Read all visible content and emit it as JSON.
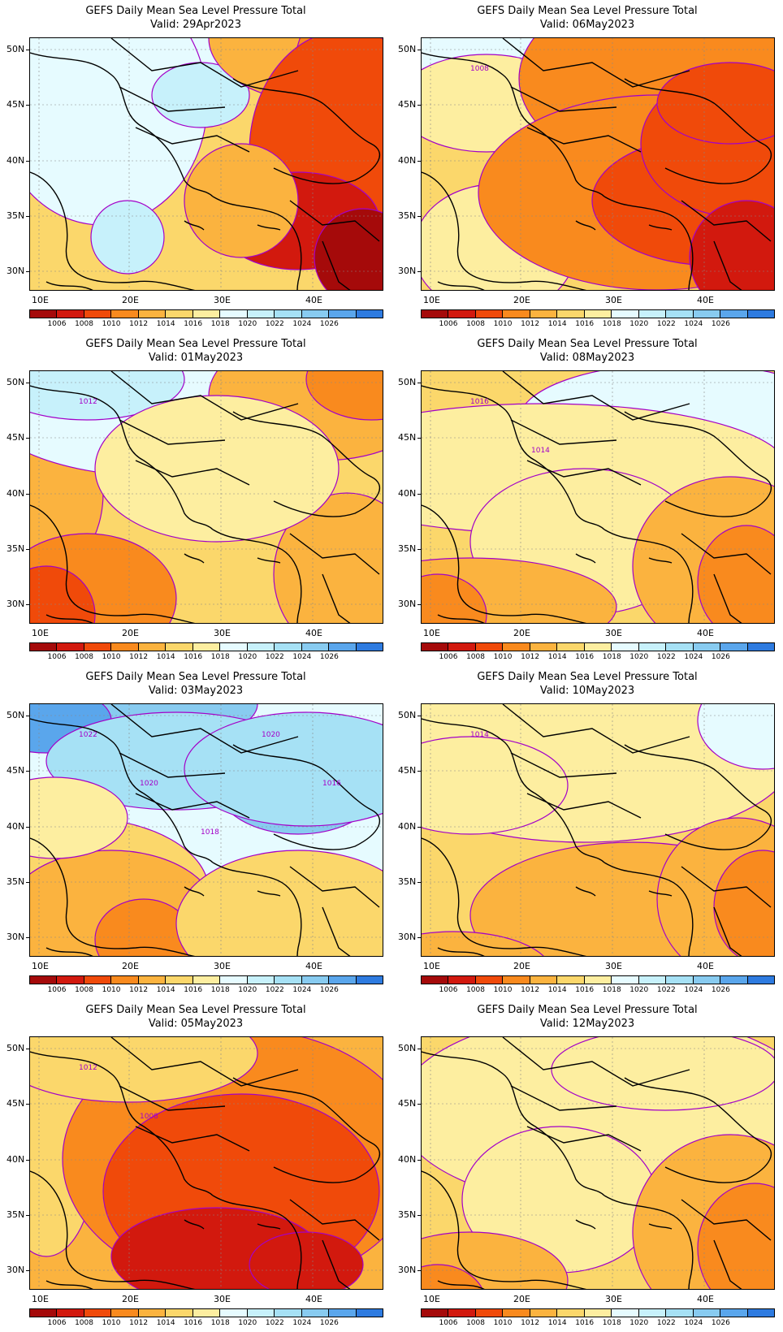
{
  "palette": [
    "#a50a0a",
    "#d2190e",
    "#f04a0a",
    "#f98a1e",
    "#fbb33f",
    "#fbd76b",
    "#fdeea0",
    "#e6fbff",
    "#c7f1fb",
    "#a6e1f5",
    "#88cbf0",
    "#5aa6ec",
    "#2e7be0"
  ],
  "contour_color": "#a300c8",
  "colorbar_labels": [
    "1006",
    "1008",
    "1010",
    "1012",
    "1014",
    "1016",
    "1018",
    "1020",
    "1022",
    "1024",
    "1026"
  ],
  "lat_labels": [
    "50N",
    "45N",
    "40N",
    "35N",
    "30N"
  ],
  "lon_labels": [
    "10E",
    "20E",
    "30E",
    "40E"
  ],
  "panels": [
    {
      "title": "GEFS Daily Mean Sea Level Pressure Total",
      "valid": "Valid: 29Apr2023",
      "bg": 5,
      "contour_labels": [],
      "fields": [
        [
          40,
          0,
          150,
          20,
          6
        ],
        [
          175,
          10,
          140,
          60,
          7
        ],
        [
          88,
          80,
          130,
          150,
          7
        ],
        [
          120,
          245,
          45,
          45,
          8
        ],
        [
          210,
          70,
          60,
          40,
          8
        ],
        [
          360,
          0,
          140,
          80,
          4
        ],
        [
          400,
          80,
          80,
          150,
          3
        ],
        [
          390,
          140,
          120,
          150,
          2
        ],
        [
          330,
          225,
          100,
          60,
          1
        ],
        [
          410,
          270,
          60,
          60,
          0
        ],
        [
          260,
          200,
          70,
          70,
          4
        ]
      ]
    },
    {
      "title": "GEFS Daily Mean Sea Level Pressure Total",
      "valid": "Valid: 06May2023",
      "bg": 5,
      "contour_labels": [
        {
          "text": "1008"
        }
      ],
      "fields": [
        [
          60,
          40,
          130,
          60,
          7
        ],
        [
          80,
          80,
          110,
          60,
          6
        ],
        [
          90,
          260,
          100,
          80,
          6
        ],
        [
          320,
          50,
          200,
          120,
          3
        ],
        [
          290,
          190,
          220,
          120,
          3
        ],
        [
          360,
          200,
          150,
          80,
          2
        ],
        [
          390,
          130,
          120,
          90,
          2
        ],
        [
          400,
          270,
          70,
          70,
          1
        ],
        [
          380,
          80,
          90,
          50,
          2
        ]
      ]
    },
    {
      "title": "GEFS Daily Mean Sea Level Pressure Total",
      "valid": "Valid: 01May2023",
      "bg": 5,
      "contour_labels": [
        {
          "text": "1012"
        }
      ],
      "fields": [
        [
          20,
          150,
          70,
          100,
          4
        ],
        [
          70,
          280,
          110,
          80,
          3
        ],
        [
          20,
          300,
          60,
          60,
          2
        ],
        [
          160,
          40,
          220,
          90,
          7
        ],
        [
          70,
          10,
          120,
          50,
          8
        ],
        [
          360,
          30,
          140,
          80,
          4
        ],
        [
          420,
          10,
          80,
          50,
          3
        ],
        [
          390,
          250,
          90,
          100,
          4
        ],
        [
          230,
          120,
          150,
          90,
          6
        ]
      ]
    },
    {
      "title": "GEFS Daily Mean Sea Level Pressure Total",
      "valid": "Valid: 08May2023",
      "bg": 5,
      "contour_labels": [
        {
          "text": "1016"
        },
        {
          "text": "1014"
        }
      ],
      "fields": [
        [
          320,
          60,
          200,
          70,
          7
        ],
        [
          150,
          120,
          300,
          80,
          6
        ],
        [
          200,
          210,
          140,
          90,
          6
        ],
        [
          60,
          290,
          180,
          60,
          4
        ],
        [
          20,
          300,
          60,
          50,
          3
        ],
        [
          380,
          240,
          120,
          110,
          4
        ],
        [
          400,
          260,
          60,
          70,
          3
        ]
      ]
    },
    {
      "title": "GEFS Daily Mean Sea Level Pressure Total",
      "valid": "Valid: 03May2023",
      "bg": 7,
      "contour_labels": [
        {
          "text": "1022"
        },
        {
          "text": "1020"
        },
        {
          "text": "1018"
        },
        {
          "text": "1020"
        },
        {
          "text": "1016"
        }
      ],
      "fields": [
        [
          80,
          0,
          200,
          60,
          10
        ],
        [
          20,
          20,
          80,
          40,
          11
        ],
        [
          180,
          70,
          160,
          60,
          9
        ],
        [
          330,
          100,
          100,
          60,
          10
        ],
        [
          340,
          80,
          150,
          70,
          9
        ],
        [
          60,
          230,
          160,
          90,
          5
        ],
        [
          100,
          260,
          130,
          80,
          4
        ],
        [
          140,
          290,
          60,
          50,
          3
        ],
        [
          330,
          270,
          150,
          90,
          5
        ],
        [
          30,
          140,
          90,
          50,
          6
        ]
      ]
    },
    {
      "title": "GEFS Daily Mean Sea Level Pressure Total",
      "valid": "Valid: 10May2023",
      "bg": 5,
      "contour_labels": [
        {
          "text": "1014"
        }
      ],
      "fields": [
        [
          200,
          60,
          260,
          110,
          6
        ],
        [
          420,
          20,
          80,
          60,
          7
        ],
        [
          60,
          100,
          120,
          60,
          6
        ],
        [
          260,
          260,
          200,
          90,
          4
        ],
        [
          390,
          240,
          100,
          100,
          4
        ],
        [
          420,
          250,
          60,
          70,
          3
        ],
        [
          40,
          330,
          120,
          50,
          4
        ]
      ]
    },
    {
      "title": "GEFS Daily Mean Sea Level Pressure Total",
      "valid": "Valid: 05May2023",
      "bg": 4,
      "contour_labels": [
        {
          "text": "1012"
        },
        {
          "text": "1008"
        }
      ],
      "fields": [
        [
          80,
          0,
          120,
          50,
          7
        ],
        [
          50,
          10,
          80,
          40,
          8
        ],
        [
          20,
          150,
          60,
          120,
          5
        ],
        [
          260,
          150,
          220,
          160,
          3
        ],
        [
          260,
          190,
          170,
          120,
          2
        ],
        [
          230,
          270,
          130,
          60,
          1
        ],
        [
          340,
          280,
          70,
          40,
          1
        ],
        [
          120,
          20,
          160,
          60,
          5
        ]
      ]
    },
    {
      "title": "GEFS Daily Mean Sea Level Pressure Total",
      "valid": "Valid: 12May2023",
      "bg": 5,
      "contour_labels": [],
      "fields": [
        [
          230,
          90,
          260,
          120,
          6
        ],
        [
          170,
          200,
          120,
          90,
          6
        ],
        [
          300,
          40,
          140,
          50,
          6
        ],
        [
          380,
          240,
          120,
          120,
          4
        ],
        [
          410,
          260,
          70,
          80,
          3
        ],
        [
          60,
          300,
          120,
          60,
          4
        ],
        [
          20,
          330,
          60,
          50,
          3
        ]
      ]
    }
  ]
}
